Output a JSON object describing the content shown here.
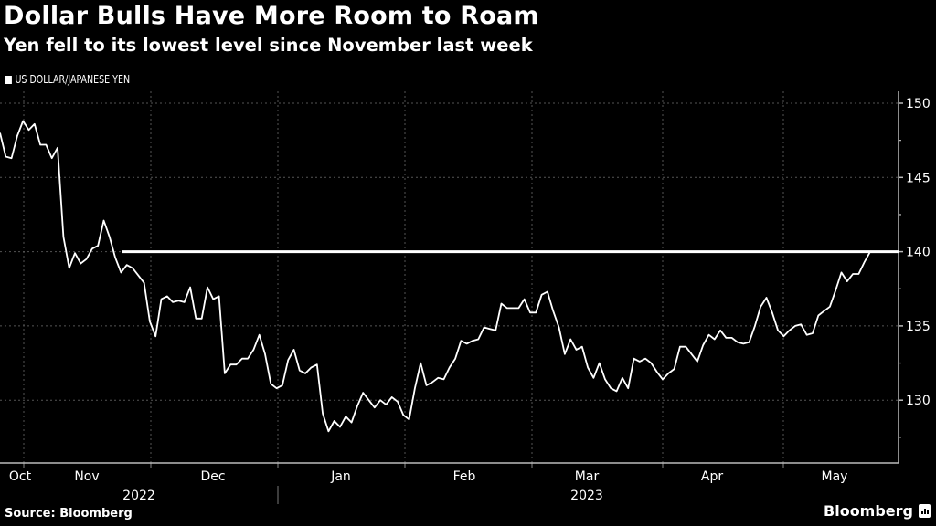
{
  "header": {
    "title": "Dollar Bulls Have More Room to Roam",
    "subtitle": "Yen fell to its lowest level since November last week"
  },
  "legend": {
    "items": [
      {
        "label": "US DOLLAR/JAPANESE YEN",
        "color": "#ffffff"
      }
    ]
  },
  "footer": {
    "source": "Source: Bloomberg",
    "brand": "Bloomberg"
  },
  "chart_data": {
    "type": "line",
    "title": "Dollar Bulls Have More Room to Roam",
    "subtitle": "Yen fell to its lowest level since November last week",
    "xlabel": "",
    "ylabel": "",
    "y_axis_position": "right",
    "ylim": [
      125.5,
      151.5
    ],
    "yticks": [
      130,
      135,
      140,
      145,
      150
    ],
    "x_tick_labels": [
      "Oct",
      "Nov",
      "Dec",
      "Jan",
      "Feb",
      "Mar",
      "Apr",
      "May"
    ],
    "x_year_labels": [
      {
        "label": "2022",
        "under": "Nov-Dec"
      },
      {
        "label": "2023",
        "under": "Mar"
      }
    ],
    "grid": true,
    "legend_position": "top-left",
    "reference_lines": [
      {
        "y": 140,
        "from": "early Nov 2022",
        "to": "end",
        "style": "thick white horizontal"
      }
    ],
    "annotations": [],
    "series": [
      {
        "name": "US DOLLAR/JAPANESE YEN",
        "color": "#ffffff",
        "values": [
          148.0,
          146.4,
          146.3,
          147.8,
          148.8,
          148.2,
          148.6,
          147.2,
          147.2,
          146.3,
          147.0,
          141.0,
          138.9,
          139.9,
          139.2,
          139.5,
          140.2,
          140.4,
          142.1,
          141.0,
          139.6,
          138.6,
          139.1,
          138.9,
          138.4,
          137.9,
          135.3,
          134.3,
          136.8,
          137.0,
          136.6,
          136.7,
          136.6,
          137.6,
          135.5,
          135.5,
          137.6,
          136.8,
          137.0,
          131.8,
          132.4,
          132.4,
          132.8,
          132.8,
          133.4,
          134.4,
          133.1,
          131.1,
          130.8,
          131.0,
          132.7,
          133.4,
          132.0,
          131.8,
          132.2,
          132.4,
          129.1,
          127.9,
          128.6,
          128.2,
          128.9,
          128.5,
          129.6,
          130.5,
          130.0,
          129.5,
          130.0,
          129.7,
          130.2,
          129.9,
          129.0,
          128.7,
          130.8,
          132.5,
          131.0,
          131.2,
          131.5,
          131.4,
          132.2,
          132.8,
          134.0,
          133.8,
          134.0,
          134.1,
          134.9,
          134.8,
          134.7,
          136.5,
          136.2,
          136.2,
          136.2,
          136.8,
          135.9,
          135.9,
          137.1,
          137.3,
          136.0,
          134.9,
          133.1,
          134.1,
          133.4,
          133.6,
          132.2,
          131.5,
          132.5,
          131.4,
          130.8,
          130.6,
          131.5,
          130.8,
          132.8,
          132.6,
          132.8,
          132.5,
          131.9,
          131.4,
          131.8,
          132.1,
          133.6,
          133.6,
          133.1,
          132.6,
          133.7,
          134.4,
          134.1,
          134.7,
          134.2,
          134.2,
          133.9,
          133.8,
          133.9,
          135.0,
          136.3,
          136.9,
          135.9,
          134.7,
          134.3,
          134.7,
          135.0,
          135.1,
          134.4,
          134.5,
          135.7,
          136.0,
          136.3,
          137.4,
          138.6,
          138.0,
          138.5,
          138.5,
          139.3,
          140.0
        ]
      }
    ]
  }
}
